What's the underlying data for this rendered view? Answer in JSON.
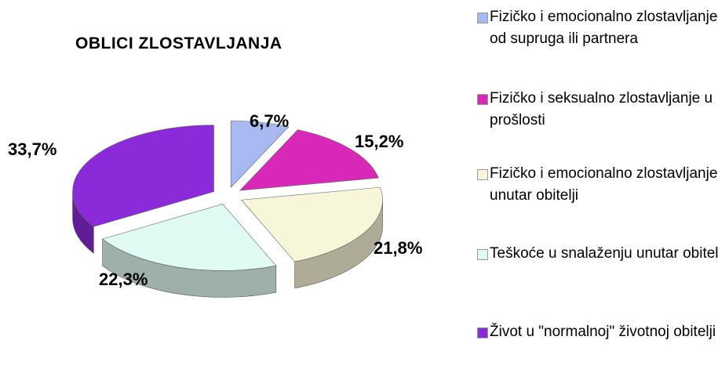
{
  "chart_data": {
    "type": "pie",
    "title": "OBLICI ZLOSTAVLJANJA",
    "slices": [
      {
        "label": "Fizičko i emocionalno zlostavljanje od supruga ili partnera",
        "value": 6.7,
        "label_text": "6,7%",
        "color": "#a8b8f0"
      },
      {
        "label": "Fizičko i seksualno zlostavljanje u prošlosti",
        "value": 15.2,
        "label_text": "15,2%",
        "color": "#d828b8"
      },
      {
        "label": "Fizičko i emocionalno zlostavljanje unutar obitelji",
        "value": 21.8,
        "label_text": "21,8%",
        "color": "#f8f6d8"
      },
      {
        "label": "Teškoće u snalaženju unutar obitelji",
        "value": 22.3,
        "label_text": "22,3%",
        "color": "#e0fbf3"
      },
      {
        "label": "Život u \"normalnoj\" životnoj obitelji",
        "value": 33.7,
        "label_text": "33,7%",
        "color": "#8a2ad8"
      }
    ],
    "legend_position": "right",
    "three_d": true,
    "exploded": true
  }
}
